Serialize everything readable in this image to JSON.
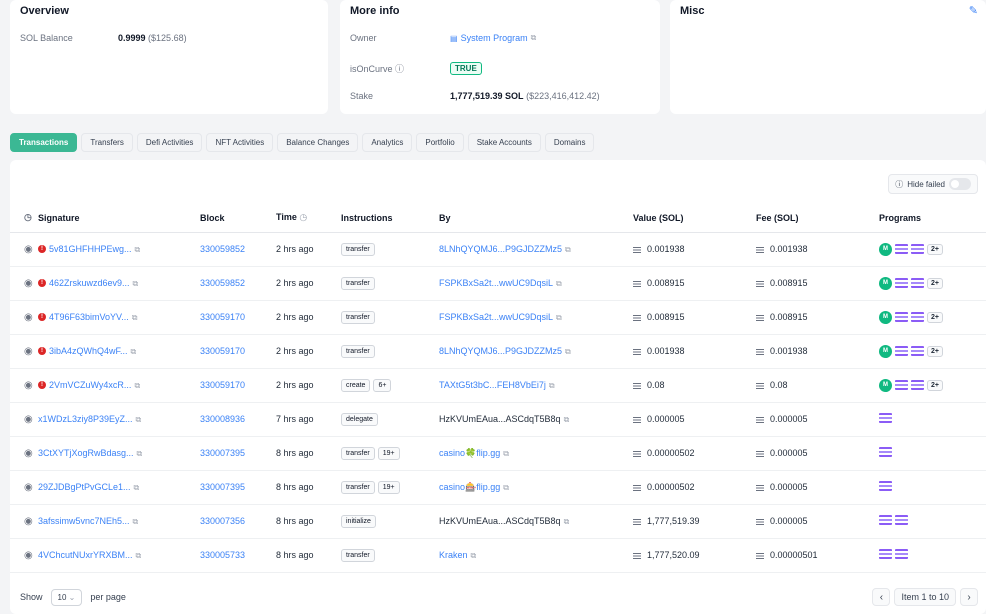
{
  "overview": {
    "title": "Overview",
    "balance_label": "SOL Balance",
    "balance_value": "0.9999",
    "balance_usd": "($125.68)"
  },
  "more_info": {
    "title": "More info",
    "owner_label": "Owner",
    "owner_value": "System Program",
    "oncurve_label": "isOnCurve",
    "oncurve_value": "TRUE",
    "stake_label": "Stake",
    "stake_value": "1,777,519.39 SOL",
    "stake_usd": "($223,416,412.42)"
  },
  "misc": {
    "title": "Misc"
  },
  "tabs": [
    "Transactions",
    "Transfers",
    "Defi Activities",
    "NFT Activities",
    "Balance Changes",
    "Analytics",
    "Portfolio",
    "Stake Accounts",
    "Domains"
  ],
  "hide_failed": "Hide failed",
  "columns": {
    "signature": "Signature",
    "block": "Block",
    "time": "Time",
    "instructions": "Instructions",
    "by": "By",
    "value": "Value (SOL)",
    "fee": "Fee (SOL)",
    "programs": "Programs"
  },
  "rows": [
    {
      "failed": true,
      "sig": "5v81GHFHHPEwg...",
      "block": "330059852",
      "time": "2 hrs ago",
      "ins": "transfer",
      "ins_extra": "",
      "by": "8LNhQYQMJ6...P9GJDZZMz5",
      "by_link": true,
      "value": "0.001938",
      "fee": "0.001938",
      "prog_main": "M",
      "prog_more": "2+",
      "prog_bars": 2
    },
    {
      "failed": true,
      "sig": "462Zrskuwzd6ev9...",
      "block": "330059852",
      "time": "2 hrs ago",
      "ins": "transfer",
      "ins_extra": "",
      "by": "FSPKBxSa2t...wwUC9DqsiL",
      "by_link": true,
      "value": "0.008915",
      "fee": "0.008915",
      "prog_main": "M",
      "prog_more": "2+",
      "prog_bars": 2
    },
    {
      "failed": true,
      "sig": "4T96F63bimVoYV...",
      "block": "330059170",
      "time": "2 hrs ago",
      "ins": "transfer",
      "ins_extra": "",
      "by": "FSPKBxSa2t...wwUC9DqsiL",
      "by_link": true,
      "value": "0.008915",
      "fee": "0.008915",
      "prog_main": "M",
      "prog_more": "2+",
      "prog_bars": 2
    },
    {
      "failed": true,
      "sig": "3ibA4zQWhQ4wF...",
      "block": "330059170",
      "time": "2 hrs ago",
      "ins": "transfer",
      "ins_extra": "",
      "by": "8LNhQYQMJ6...P9GJDZZMz5",
      "by_link": true,
      "value": "0.001938",
      "fee": "0.001938",
      "prog_main": "M",
      "prog_more": "2+",
      "prog_bars": 2
    },
    {
      "failed": true,
      "sig": "2VmVCZuWy4xcR...",
      "block": "330059170",
      "time": "2 hrs ago",
      "ins": "create",
      "ins_extra": "6+",
      "by": "TAXtG5t3bC...FEH8VbEi7j",
      "by_link": true,
      "value": "0.08",
      "fee": "0.08",
      "prog_main": "M",
      "prog_more": "2+",
      "prog_bars": 2
    },
    {
      "failed": false,
      "sig": "x1WDzL3ziy8P39EyZ...",
      "block": "330008936",
      "time": "7 hrs ago",
      "ins": "delegate",
      "ins_extra": "",
      "by": "HzKVUmEAua...ASCdqT5B8q",
      "by_link": false,
      "value": "0.000005",
      "fee": "0.000005",
      "prog_main": "",
      "prog_more": "",
      "prog_bars": 1
    },
    {
      "failed": false,
      "sig": "3CtXYTjXogRwBdasg...",
      "block": "330007395",
      "time": "8 hrs ago",
      "ins": "transfer",
      "ins_extra": "19+",
      "by": "casino🍀flip.gg",
      "by_link": true,
      "value": "0.00000502",
      "fee": "0.000005",
      "prog_main": "",
      "prog_more": "",
      "prog_bars": 1
    },
    {
      "failed": false,
      "sig": "29ZJDBgPtPvGCLe1...",
      "block": "330007395",
      "time": "8 hrs ago",
      "ins": "transfer",
      "ins_extra": "19+",
      "by": "casino🎰flip.gg",
      "by_link": true,
      "value": "0.00000502",
      "fee": "0.000005",
      "prog_main": "",
      "prog_more": "",
      "prog_bars": 1
    },
    {
      "failed": false,
      "sig": "3afssimw5vnc7NEh5...",
      "block": "330007356",
      "time": "8 hrs ago",
      "ins": "initialize",
      "ins_extra": "",
      "by": "HzKVUmEAua...ASCdqT5B8q",
      "by_link": false,
      "value": "1,777,519.39",
      "fee": "0.000005",
      "prog_main": "",
      "prog_more": "",
      "prog_bars": 2
    },
    {
      "failed": false,
      "sig": "4VChcutNUxrYRXBM...",
      "block": "330005733",
      "time": "8 hrs ago",
      "ins": "transfer",
      "ins_extra": "",
      "by": "Kraken",
      "by_link": true,
      "value": "1,777,520.09",
      "fee": "0.00000501",
      "prog_main": "",
      "prog_more": "",
      "prog_bars": 2
    }
  ],
  "footer": {
    "show": "Show",
    "per_page_value": "10",
    "per_page": "per page",
    "page_info": "Item 1 to 10"
  },
  "colors": {
    "accent": "#3bb894",
    "link": "#3b82f6",
    "error": "#dc2626",
    "program_main": "#10b981",
    "program_bar": "#8b5cf6"
  }
}
